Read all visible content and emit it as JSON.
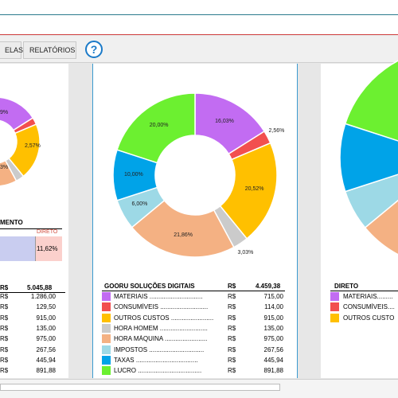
{
  "tabs": {
    "parcelas_label": "ELAS",
    "relatorios_label": "RELATÓRIOS",
    "help_label": "?"
  },
  "colors": {
    "materiais": "#c26cf2",
    "consumiveis": "#f24f4f",
    "outros_custos": "#ffc000",
    "hora_homem": "#cbcbcb",
    "hora_maquina": "#f4b183",
    "impostos": "#9dd9e6",
    "taxas": "#00a3e8",
    "lucro": "#6cf030"
  },
  "left_panel": {
    "pie_labels": {
      "materiais": "9%",
      "consumiveis": "2,57%",
      "outros": "3%"
    },
    "section_title": "MENTO",
    "direto_label": "DIRETO",
    "direto_value": "11,62%",
    "currency_header": "R$",
    "total_header": "5.045,88",
    "currency": "R$",
    "values": [
      "1.286,00",
      "129,50",
      "915,00",
      "135,00",
      "975,00",
      "267,56",
      "445,94",
      "891,88"
    ]
  },
  "center_panel": {
    "chart_data": {
      "type": "pie",
      "categories": [
        "MATERIAIS",
        "CONSUMÍVEIS",
        "OUTROS CUSTOS",
        "HORA HOMEM",
        "HORA MÁQUINA",
        "IMPOSTOS",
        "TAXAS",
        "LUCRO"
      ],
      "values": [
        16.03,
        2.56,
        20.52,
        3.03,
        21.86,
        6.0,
        10.0,
        20.0
      ],
      "labels": [
        "16,03%",
        "2,56%",
        "20,52%",
        "3,03%",
        "21,86%",
        "6,00%",
        "10,00%",
        "20,00%"
      ]
    },
    "company": "GOORU SOLUÇÕES DIGITAIS",
    "currency_header": "R$",
    "total": "4.459,38",
    "currency": "R$",
    "items": [
      {
        "name": "MATERIAIS ..............................",
        "value": "715,00",
        "key": "materiais"
      },
      {
        "name": "CONSUMÍVEIS ...........................",
        "value": "114,00",
        "key": "consumiveis"
      },
      {
        "name": "OUTROS CUSTOS ........................",
        "value": "915,00",
        "key": "outros_custos"
      },
      {
        "name": "HORA HOMEM ...........................",
        "value": "135,00",
        "key": "hora_homem"
      },
      {
        "name": "HORA MÁQUINA ........................",
        "value": "975,00",
        "key": "hora_maquina"
      },
      {
        "name": "IMPOSTOS ...............................",
        "value": "267,56",
        "key": "impostos"
      },
      {
        "name": "TAXAS ...................................",
        "value": "445,94",
        "key": "taxas"
      },
      {
        "name": "LUCRO ....................................",
        "value": "891,88",
        "key": "lucro"
      }
    ]
  },
  "right_panel": {
    "header": "DIRETO",
    "items": [
      {
        "name": "MATERIAIS.........",
        "key": "materiais"
      },
      {
        "name": "CONSUMÍVEIS....",
        "key": "consumiveis"
      },
      {
        "name": "OUTROS CUSTO",
        "key": "outros_custos"
      }
    ]
  }
}
